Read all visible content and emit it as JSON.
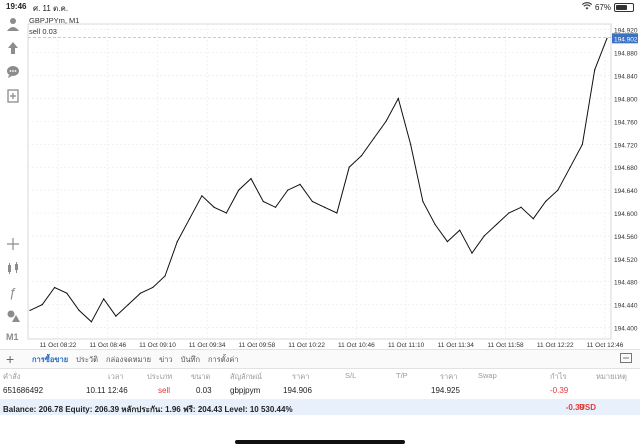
{
  "status_bar": {
    "time": "19:46",
    "date": "ศ. 11 ต.ค.",
    "wifi_icon": "wifi-icon",
    "battery_percent": "67%",
    "battery_level": 0.67
  },
  "sidebar": {
    "items": [
      {
        "name": "account-icon",
        "glyph": "👤"
      },
      {
        "name": "upload-icon",
        "glyph": "⬆"
      },
      {
        "name": "chat-icon",
        "glyph": "💬"
      },
      {
        "name": "add-document-icon",
        "glyph": "⊞"
      },
      {
        "name": "crosshair-icon",
        "glyph": "+"
      },
      {
        "name": "indicators-icon",
        "glyph": "⧉"
      },
      {
        "name": "function-icon",
        "glyph": "ƒ"
      },
      {
        "name": "objects-icon",
        "glyph": "▲"
      }
    ],
    "timeframe": "M1"
  },
  "chart": {
    "symbol_label": "GBPJPYm, M1",
    "order_label": "sell 0.03",
    "current_price_tag": "194.902",
    "y_ticks": [
      "194.920",
      "194.880",
      "194.840",
      "194.800",
      "194.760",
      "194.720",
      "194.680",
      "194.640",
      "194.600",
      "194.560",
      "194.520",
      "194.480",
      "194.440",
      "194.400"
    ],
    "x_ticks": [
      "11 Oct 08:22",
      "11 Oct 08:46",
      "11 Oct 09:10",
      "11 Oct 09:34",
      "11 Oct 09:58",
      "11 Oct 10:22",
      "11 Oct 10:46",
      "11 Oct 11:10",
      "11 Oct 11:34",
      "11 Oct 11:58",
      "11 Oct 12:22",
      "11 Oct 12:46"
    ],
    "colors": {
      "line": "#111111",
      "grid": "#e9e9e9",
      "price_tag_bg": "#3a73c4"
    }
  },
  "chart_data": {
    "type": "line",
    "title": "GBPJPYm, M1",
    "xlabel": "",
    "ylabel": "",
    "ylim": [
      194.38,
      194.93
    ],
    "x": [
      "08:04",
      "08:10",
      "08:16",
      "08:22",
      "08:28",
      "08:34",
      "08:40",
      "08:46",
      "08:52",
      "08:58",
      "09:04",
      "09:10",
      "09:16",
      "09:22",
      "09:28",
      "09:34",
      "09:40",
      "09:46",
      "09:52",
      "09:58",
      "10:04",
      "10:10",
      "10:16",
      "10:22",
      "10:28",
      "10:34",
      "10:40",
      "10:46",
      "10:52",
      "10:58",
      "11:04",
      "11:10",
      "11:16",
      "11:22",
      "11:28",
      "11:34",
      "11:40",
      "11:46",
      "11:52",
      "11:58",
      "12:04",
      "12:10",
      "12:16",
      "12:22",
      "12:28",
      "12:34",
      "12:40",
      "12:46"
    ],
    "series": [
      {
        "values": [
          194.43,
          194.44,
          194.47,
          194.46,
          194.43,
          194.41,
          194.45,
          194.42,
          194.44,
          194.46,
          194.47,
          194.49,
          194.55,
          194.59,
          194.63,
          194.61,
          194.6,
          194.64,
          194.66,
          194.62,
          194.61,
          194.64,
          194.65,
          194.62,
          194.61,
          194.6,
          194.68,
          194.7,
          194.73,
          194.76,
          194.8,
          194.72,
          194.62,
          194.58,
          194.55,
          194.57,
          194.53,
          194.56,
          194.58,
          194.6,
          194.61,
          194.59,
          194.62,
          194.64,
          194.68,
          194.72,
          194.85,
          194.905
        ]
      }
    ]
  },
  "tabs": {
    "items": [
      "การซื้อขาย",
      "ประวัติ",
      "กล่องจดหมาย",
      "ข่าว",
      "บันทึก",
      "การตั้งค่า"
    ],
    "active_index": 0
  },
  "table": {
    "headers": [
      "คำสั่ง",
      "เวลา",
      "ประเภท",
      "ขนาด",
      "สัญลักษณ์",
      "ราคา",
      "S/L",
      "T/P",
      "ราคา",
      "Swap",
      "กำไร",
      "หมายเหตุ"
    ],
    "row": {
      "ticket": "651686492",
      "time": "10.11 12:46",
      "type": "sell",
      "volume": "0.03",
      "symbol": "gbpjpym",
      "open_price": "194.906",
      "sl": "",
      "tp": "",
      "current_price": "194.925",
      "swap": "",
      "profit": "-0.39",
      "comment": ""
    }
  },
  "balance": {
    "text": "Balance: 206.78 Equity: 206.39 หลักประกัน: 1.96 ฟรี: 204.43 Level: 10 530.44%",
    "profit": "-0.39",
    "currency": "USD"
  }
}
